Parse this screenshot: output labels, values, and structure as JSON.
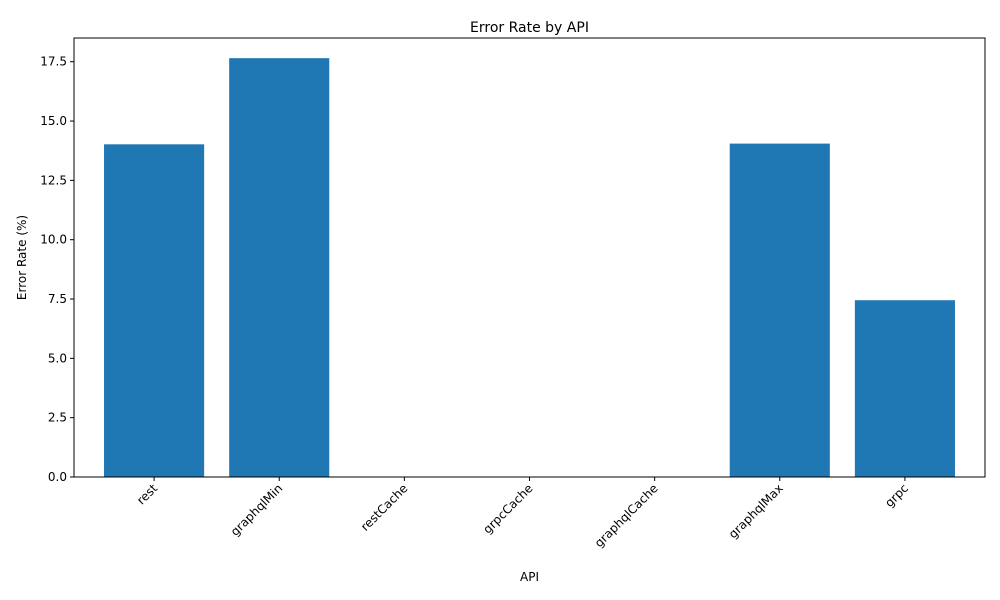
{
  "chart_data": {
    "type": "bar",
    "title": "Error Rate by API",
    "xlabel": "API",
    "ylabel": "Error Rate (%)",
    "categories": [
      "rest",
      "graphqlMin",
      "restCache",
      "grpcCache",
      "graphqlCache",
      "graphqlMax",
      "grpc"
    ],
    "values": [
      14.02,
      17.65,
      0,
      0,
      0,
      14.05,
      7.45
    ],
    "ylim": [
      0,
      18.5
    ],
    "yticks": [
      0.0,
      2.5,
      5.0,
      7.5,
      10.0,
      12.5,
      15.0,
      17.5
    ],
    "ytick_labels": [
      "0.0",
      "2.5",
      "5.0",
      "7.5",
      "10.0",
      "12.5",
      "15.0",
      "17.5"
    ],
    "bar_color": "#1f77b4",
    "grid": false,
    "legend": "none"
  }
}
